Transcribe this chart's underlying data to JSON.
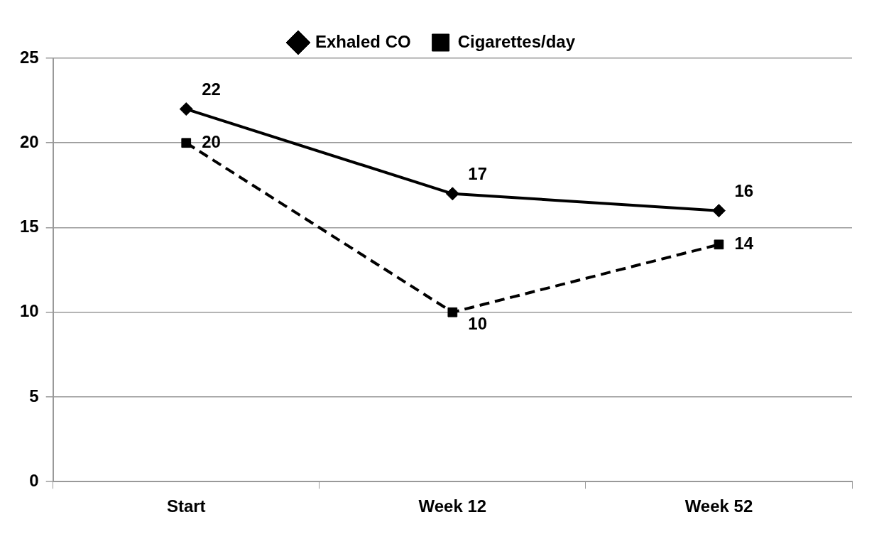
{
  "chart_data": {
    "type": "line",
    "categories": [
      "Start",
      "Week 12",
      "Week 52"
    ],
    "series": [
      {
        "name": "Exhaled CO",
        "color": "#000000",
        "values": [
          22,
          17,
          16
        ],
        "marker": "diamond",
        "line_style": "solid"
      },
      {
        "name": "Cigarettes/day",
        "color": "#000000",
        "values": [
          20,
          10,
          14
        ],
        "marker": "square",
        "line_style": "dashed"
      }
    ],
    "ylim": [
      0,
      25
    ],
    "yticks": [
      0,
      5,
      10,
      15,
      20,
      25
    ],
    "grid": "y",
    "legend": "top",
    "data_labels": true
  }
}
